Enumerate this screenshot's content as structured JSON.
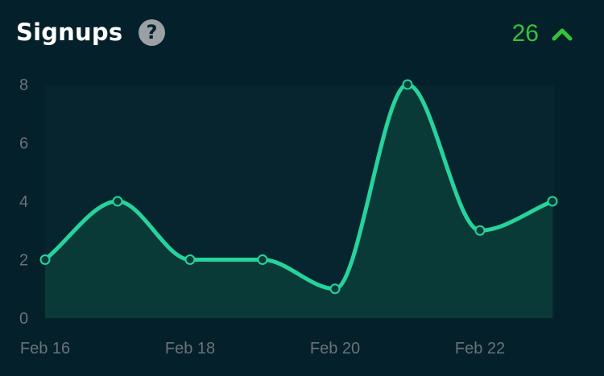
{
  "header": {
    "title": "Signups",
    "help_icon": "question-circle-icon",
    "help_glyph": "?",
    "total": "26",
    "trend_icon": "chevron-up-icon"
  },
  "colors": {
    "background": "#04202b",
    "line": "#27d39c",
    "area": "#0a3a38",
    "trend": "#35c23b",
    "tick": "#6a7378"
  },
  "chart_data": {
    "type": "area",
    "title": "Signups",
    "x": [
      "Feb 16",
      "Feb 17",
      "Feb 18",
      "Feb 19",
      "Feb 20",
      "Feb 21",
      "Feb 22",
      "Feb 23"
    ],
    "values": [
      2,
      4,
      2,
      2,
      1,
      8,
      3,
      4
    ],
    "xticks": [
      "Feb 16",
      "Feb 18",
      "Feb 20",
      "Feb 22"
    ],
    "yticks": [
      0,
      2,
      4,
      6,
      8
    ],
    "ylim": [
      0,
      8
    ],
    "xlabel": "",
    "ylabel": "",
    "grid": false,
    "legend": "none"
  }
}
